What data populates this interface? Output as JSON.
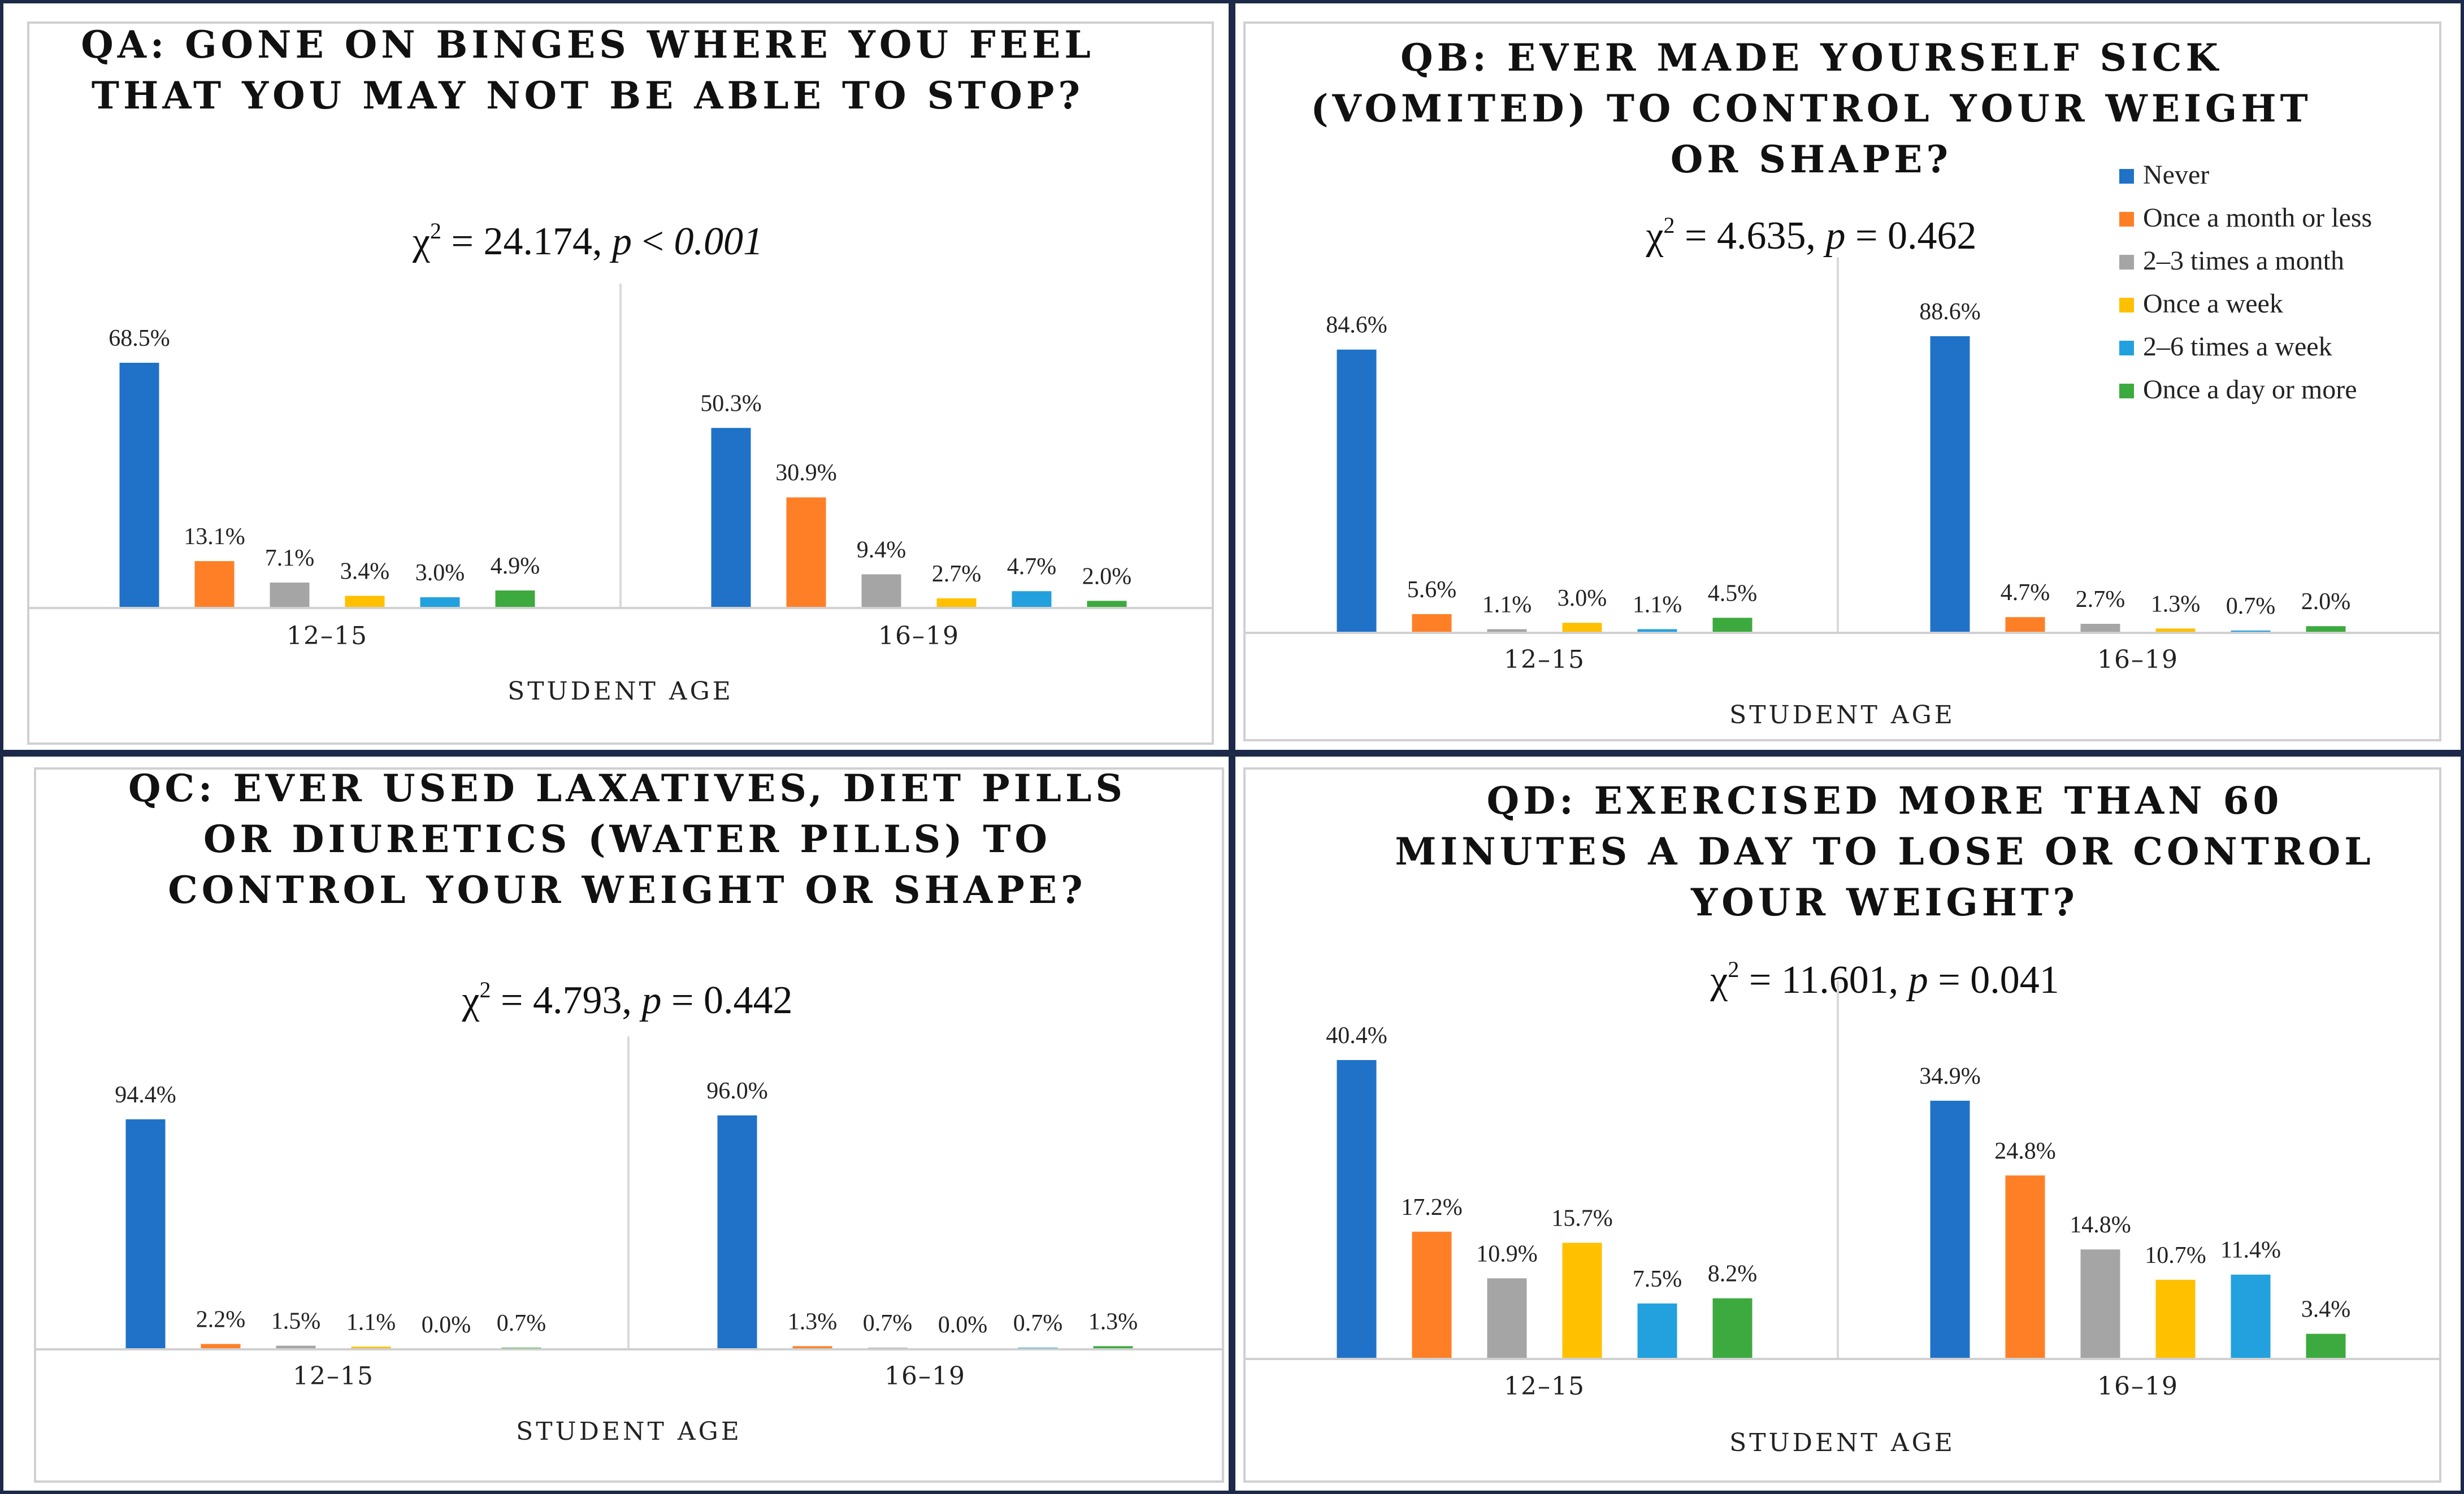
{
  "figure": {
    "x_axis_title": "STUDENT AGE",
    "age_groups": [
      "12–15",
      "16–19"
    ]
  },
  "legend": [
    {
      "label": "Never",
      "color": "#1F72C8"
    },
    {
      "label": "Once a month or less",
      "color": "#FF7F27"
    },
    {
      "label": "2–3 times a month",
      "color": "#A5A5A5"
    },
    {
      "label": "Once a week",
      "color": "#FFC000"
    },
    {
      "label": "2–6 times a week",
      "color": "#23A1DE"
    },
    {
      "label": "Once a day or more",
      "color": "#3DAA3F"
    }
  ],
  "chart_data": [
    {
      "type": "bar",
      "id": "QA",
      "title_lines": [
        "QA: GONE ON BINGES WHERE YOU FEEL",
        "THAT YOU MAY NOT BE ABLE TO STOP?"
      ],
      "chi_value": "24.174",
      "p_op": "<",
      "p_value": "0.001",
      "p_value_italic": true,
      "xlabel": "STUDENT AGE",
      "ylabel": "",
      "ylim": [
        0,
        80
      ],
      "categories": [
        "12–15",
        "16–19"
      ],
      "series": [
        {
          "name": "Never",
          "values": [
            68.5,
            50.3
          ]
        },
        {
          "name": "Once a month or less",
          "values": [
            13.1,
            30.9
          ]
        },
        {
          "name": "2–3 times a month",
          "values": [
            7.1,
            9.4
          ]
        },
        {
          "name": "Once a week",
          "values": [
            3.4,
            2.7
          ]
        },
        {
          "name": "2–6 times a week",
          "values": [
            3.0,
            4.7
          ]
        },
        {
          "name": "Once a day or more",
          "values": [
            4.9,
            2.0
          ]
        }
      ]
    },
    {
      "type": "bar",
      "id": "QB",
      "title_lines": [
        "QB: EVER MADE YOURSELF SICK",
        "(VOMITED) TO CONTROL YOUR WEIGHT",
        "OR SHAPE?"
      ],
      "chi_value": "4.635",
      "p_op": "=",
      "p_value": "0.462",
      "p_value_italic": false,
      "xlabel": "STUDENT AGE",
      "ylabel": "",
      "ylim": [
        0,
        100
      ],
      "categories": [
        "12–15",
        "16–19"
      ],
      "series": [
        {
          "name": "Never",
          "values": [
            84.6,
            88.6
          ]
        },
        {
          "name": "Once a month or less",
          "values": [
            5.6,
            4.7
          ]
        },
        {
          "name": "2–3 times a month",
          "values": [
            1.1,
            2.7
          ]
        },
        {
          "name": "Once a week",
          "values": [
            3.0,
            1.3
          ]
        },
        {
          "name": "2–6 times a week",
          "values": [
            1.1,
            0.7
          ]
        },
        {
          "name": "Once a day or more",
          "values": [
            4.5,
            2.0
          ]
        }
      ]
    },
    {
      "type": "bar",
      "id": "QC",
      "title_lines": [
        "QC: EVER USED LAXATIVES, DIET PILLS",
        "OR DIURETICS (WATER PILLS) TO",
        "CONTROL YOUR WEIGHT OR SHAPE?"
      ],
      "chi_value": "4.793",
      "p_op": "=",
      "p_value": "0.442",
      "p_value_italic": false,
      "xlabel": "STUDENT AGE",
      "ylabel": "",
      "ylim": [
        0,
        100
      ],
      "categories": [
        "12–15",
        "16–19"
      ],
      "series": [
        {
          "name": "Never",
          "values": [
            94.4,
            96.0
          ]
        },
        {
          "name": "Once a month or less",
          "values": [
            2.2,
            1.3
          ]
        },
        {
          "name": "2–3 times a month",
          "values": [
            1.5,
            0.7
          ]
        },
        {
          "name": "Once a week",
          "values": [
            1.1,
            0.0
          ]
        },
        {
          "name": "2–6 times a week",
          "values": [
            0.0,
            0.7
          ]
        },
        {
          "name": "Once a day or more",
          "values": [
            0.7,
            1.3
          ]
        }
      ]
    },
    {
      "type": "bar",
      "id": "QD",
      "title_lines": [
        "QD: EXERCISED MORE THAN 60",
        "MINUTES A DAY TO LOSE OR CONTROL",
        "YOUR WEIGHT?"
      ],
      "chi_value": "11.601",
      "p_op": "=",
      "p_value": "0.041",
      "p_value_italic": false,
      "xlabel": "STUDENT AGE",
      "ylabel": "",
      "ylim": [
        0,
        45
      ],
      "categories": [
        "12–15",
        "16–19"
      ],
      "series": [
        {
          "name": "Never",
          "values": [
            40.4,
            34.9
          ]
        },
        {
          "name": "Once a month or less",
          "values": [
            17.2,
            24.8
          ]
        },
        {
          "name": "2–3 times a month",
          "values": [
            10.9,
            14.8
          ]
        },
        {
          "name": "Once a week",
          "values": [
            15.7,
            10.7
          ]
        },
        {
          "name": "2–6 times a week",
          "values": [
            7.5,
            11.4
          ]
        },
        {
          "name": "Once a day or more",
          "values": [
            8.2,
            3.4
          ]
        }
      ]
    }
  ]
}
